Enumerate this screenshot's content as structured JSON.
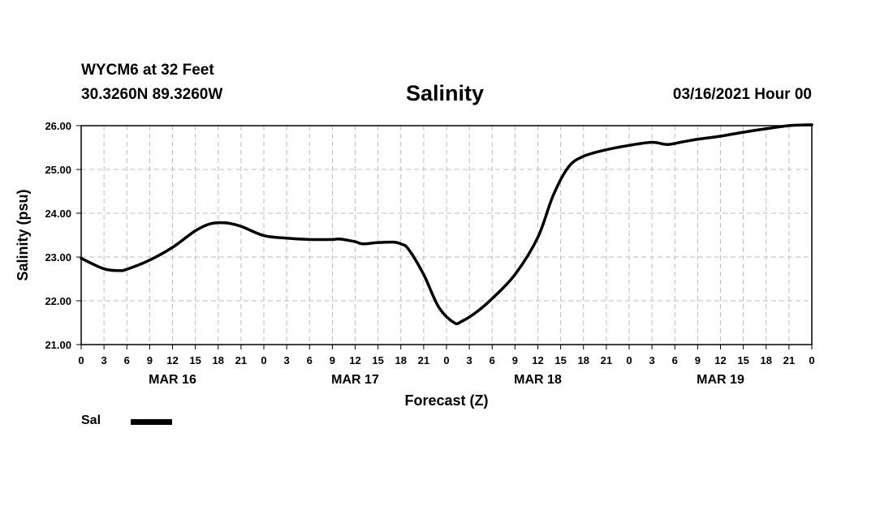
{
  "header": {
    "station": "WYCM6 at 32 Feet",
    "coords": "30.3260N 89.3260W",
    "title": "Salinity",
    "datetime": "03/16/2021 Hour 00"
  },
  "chart_data": {
    "type": "line",
    "title": "Salinity",
    "xlabel": "Forecast (Z)",
    "ylabel": "Salinity (psu)",
    "xlim": [
      0,
      96
    ],
    "ylim": [
      21,
      26
    ],
    "y_ticks": [
      "21.00",
      "22.00",
      "23.00",
      "24.00",
      "25.00",
      "26.00"
    ],
    "x_tick_labels": [
      "0",
      "3",
      "6",
      "9",
      "12",
      "15",
      "18",
      "21",
      "0",
      "3",
      "6",
      "9",
      "12",
      "15",
      "18",
      "21",
      "0",
      "3",
      "6",
      "9",
      "12",
      "15",
      "18",
      "21",
      "0",
      "3",
      "6",
      "9",
      "12",
      "15",
      "18",
      "21",
      "0"
    ],
    "day_labels": [
      {
        "label": "MAR 16",
        "hour": 12
      },
      {
        "label": "MAR 17",
        "hour": 36
      },
      {
        "label": "MAR 18",
        "hour": 60
      },
      {
        "label": "MAR 19",
        "hour": 84
      }
    ],
    "grid": true,
    "legend_position": "bottom-left",
    "series": [
      {
        "name": "Sal",
        "color": "#000000",
        "points": [
          [
            0,
            22.97
          ],
          [
            3,
            22.73
          ],
          [
            5,
            22.69
          ],
          [
            6,
            22.72
          ],
          [
            9,
            22.93
          ],
          [
            12,
            23.22
          ],
          [
            15,
            23.6
          ],
          [
            17,
            23.76
          ],
          [
            19,
            23.78
          ],
          [
            21,
            23.7
          ],
          [
            24,
            23.49
          ],
          [
            27,
            23.43
          ],
          [
            30,
            23.4
          ],
          [
            33,
            23.4
          ],
          [
            34,
            23.41
          ],
          [
            36,
            23.35
          ],
          [
            37,
            23.3
          ],
          [
            39,
            23.33
          ],
          [
            41,
            23.34
          ],
          [
            42,
            23.3
          ],
          [
            43,
            23.18
          ],
          [
            45,
            22.6
          ],
          [
            47,
            21.85
          ],
          [
            49,
            21.5
          ],
          [
            50,
            21.53
          ],
          [
            52,
            21.75
          ],
          [
            54,
            22.05
          ],
          [
            57,
            22.6
          ],
          [
            60,
            23.45
          ],
          [
            62,
            24.4
          ],
          [
            64,
            25.05
          ],
          [
            66,
            25.3
          ],
          [
            69,
            25.45
          ],
          [
            72,
            25.55
          ],
          [
            75,
            25.62
          ],
          [
            77,
            25.57
          ],
          [
            79,
            25.63
          ],
          [
            81,
            25.69
          ],
          [
            84,
            25.76
          ],
          [
            87,
            25.85
          ],
          [
            90,
            25.93
          ],
          [
            93,
            26.0
          ],
          [
            96,
            26.02
          ]
        ]
      }
    ]
  }
}
